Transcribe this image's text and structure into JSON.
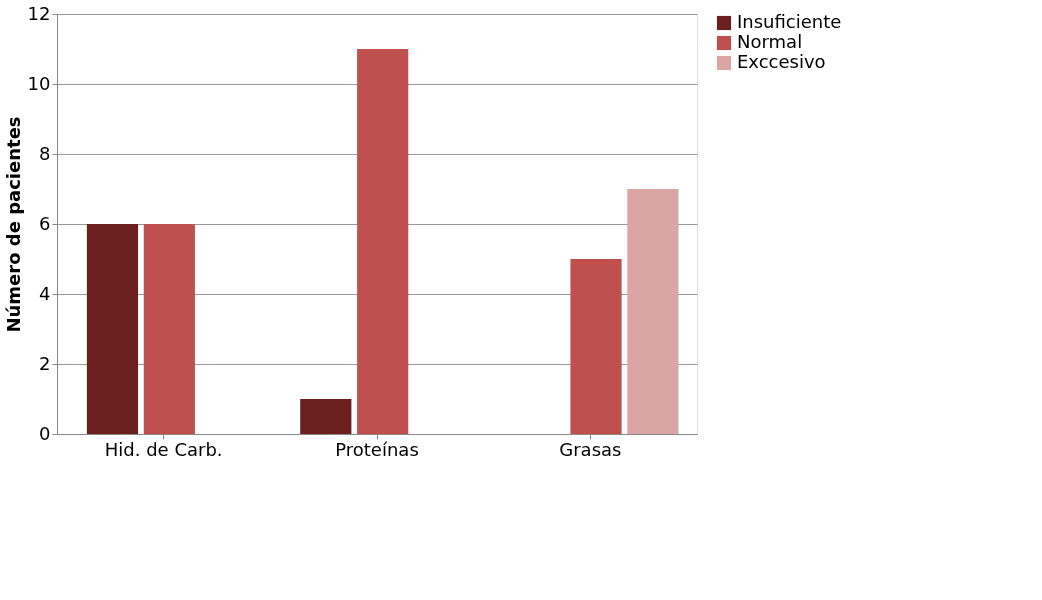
{
  "chart_data": {
    "type": "bar",
    "ylabel": "Número de pacientes",
    "categories": [
      "Hid. de Carb.",
      "Proteínas",
      "Grasas"
    ],
    "series": [
      {
        "name": "Insuficiente",
        "color": "#6b1f1f",
        "values": [
          6,
          1,
          0
        ]
      },
      {
        "name": "Normal",
        "color": "#c0504d",
        "values": [
          6,
          11,
          5
        ]
      },
      {
        "name": "Exccesivo",
        "color": "#d9a5a5",
        "values": [
          0,
          0,
          7
        ]
      }
    ],
    "ylim": [
      0,
      12
    ],
    "yticks": [
      0,
      2,
      4,
      6,
      8,
      10,
      12
    ],
    "grid": "y",
    "legend": "right"
  }
}
